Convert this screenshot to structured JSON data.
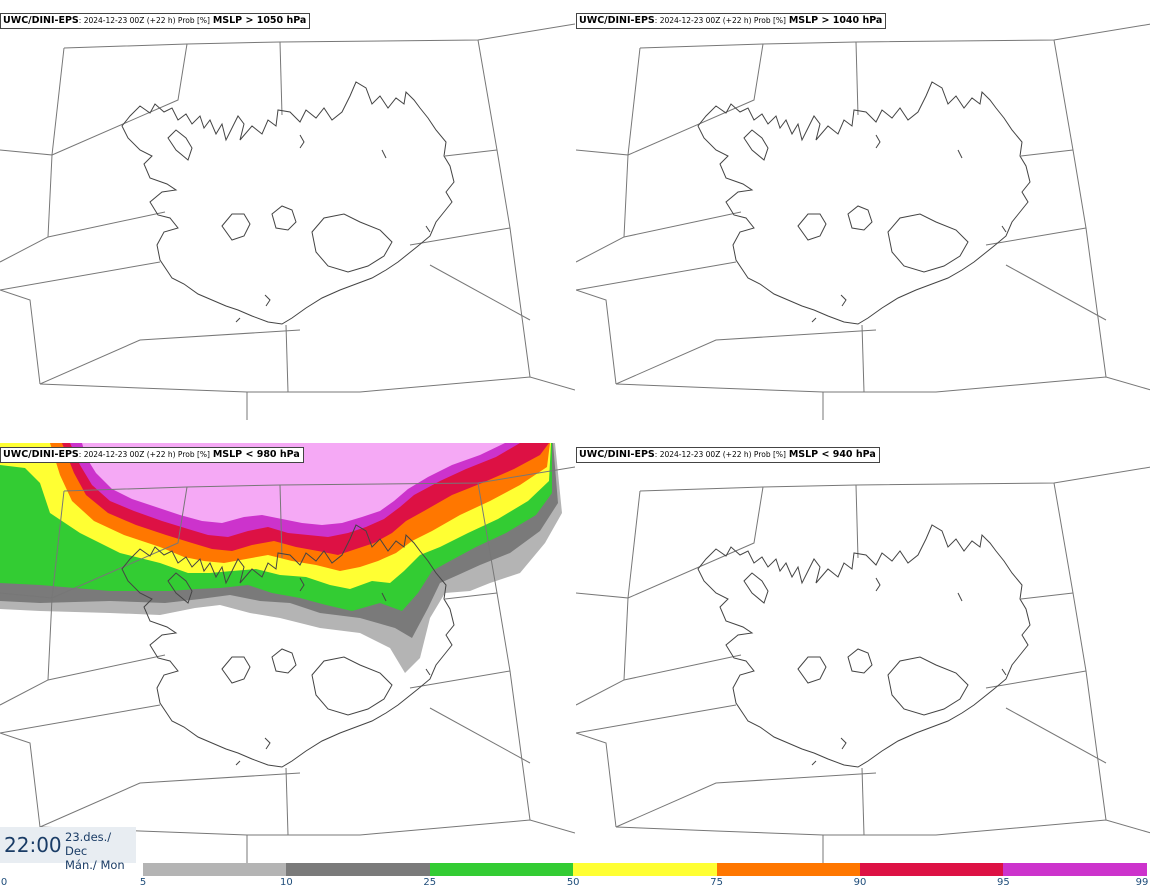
{
  "panels": [
    {
      "model": "UWC/DINI-EPS",
      "info": ": 2024-12-23 00Z (+22 h) Prob [%]",
      "condition": "MSLP > 1050 hPa"
    },
    {
      "model": "UWC/DINI-EPS",
      "info": ": 2024-12-23 00Z (+22 h) Prob [%]",
      "condition": "MSLP > 1040 hPa"
    },
    {
      "model": "UWC/DINI-EPS",
      "info": ": 2024-12-23 00Z (+22 h) Prob [%]",
      "condition": "MSLP < 980 hPa"
    },
    {
      "model": "UWC/DINI-EPS",
      "info": ": 2024-12-23 00Z (+22 h) Prob [%]",
      "condition": "MSLP < 940 hPa"
    }
  ],
  "valid_time": {
    "time": "22:00",
    "date_line1": "23.des./ Dec",
    "date_line2": "Mán./ Mon"
  },
  "colorbar": {
    "ticks": [
      "0",
      "5",
      "10",
      "25",
      "50",
      "75",
      "90",
      "95",
      "99"
    ],
    "colors": [
      "#ffffff",
      "#b4b4b4",
      "#7a7a7a",
      "#33cc33",
      "#ffff33",
      "#ff7700",
      "#dd1144",
      "#cc33cc",
      "#f5a9f5"
    ]
  }
}
